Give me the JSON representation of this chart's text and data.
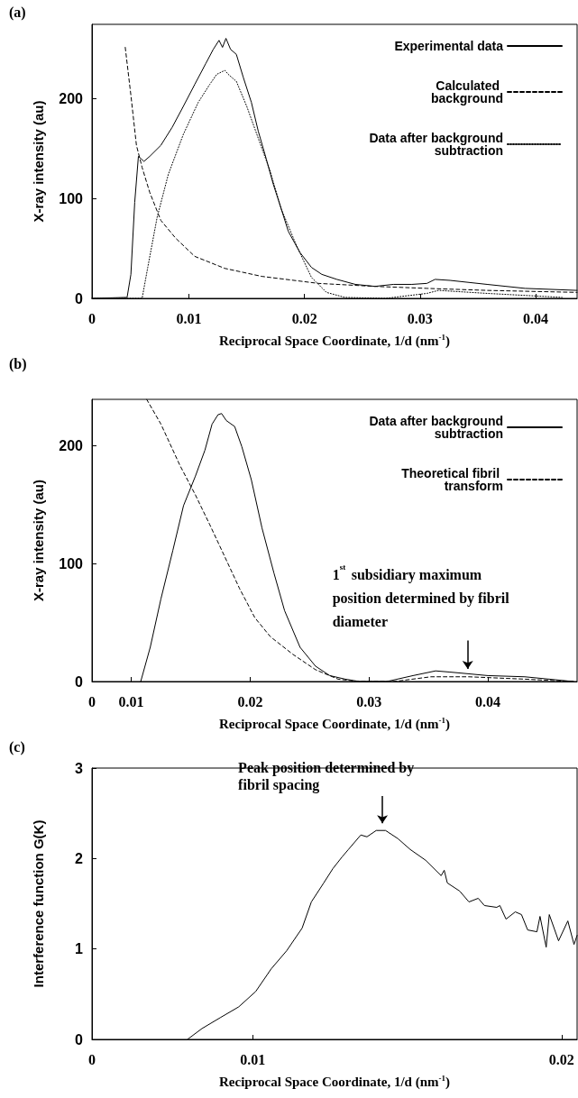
{
  "chart_data": [
    {
      "type": "line",
      "title": "(a)",
      "xlabel": "Reciprocal Space Coordinate, 1/d (nm$^{-1}$)",
      "ylabel": "X-ray intensity (au)",
      "xlim": [
        0.0016,
        0.0436
      ],
      "xticks": [
        {
          "value": 0.0016,
          "label": "0"
        },
        0.01,
        0.02,
        0.03,
        0.04
      ],
      "ylim": [
        0,
        274
      ],
      "yticks": [
        0,
        100,
        200
      ],
      "grid": false,
      "legend": "top right",
      "marker": "none",
      "series": [
        {
          "name": "Experimental data",
          "color": "#000000",
          "line_style": "solid",
          "x": [
            0.0016,
            0.00464,
            0.00497,
            0.0053,
            0.00562,
            0.0061,
            0.0066,
            0.00756,
            0.00854,
            0.00951,
            0.0105,
            0.01146,
            0.0121,
            0.0126,
            0.0129,
            0.0132,
            0.0136,
            0.0141,
            0.0147,
            0.0154,
            0.016,
            0.0167,
            0.0173,
            0.018,
            0.0186,
            0.0196,
            0.0206,
            0.0215,
            0.0228,
            0.0244,
            0.0261,
            0.0277,
            0.0293,
            0.0306,
            0.0313,
            0.0326,
            0.0358,
            0.0391,
            0.0436
          ],
          "values": [
            0,
            1,
            24,
            96,
            142,
            137,
            142,
            153,
            171,
            192,
            214,
            235,
            249,
            258,
            251,
            260,
            249,
            244,
            221,
            196,
            167,
            139,
            114,
            89,
            67,
            46,
            31,
            24,
            19,
            14,
            12,
            14,
            14,
            15,
            19,
            18,
            14,
            10,
            8
          ]
        },
        {
          "name": "Calculated background",
          "color": "#000000",
          "line_style": "dashed",
          "x": [
            0.00448,
            0.00497,
            0.00545,
            0.00594,
            0.0066,
            0.00756,
            0.00886,
            0.0105,
            0.0131,
            0.0163,
            0.0212,
            0.0261,
            0.0306,
            0.0358,
            0.0436
          ],
          "values": [
            251,
            203,
            153,
            131,
            106,
            78,
            60,
            42,
            30,
            22,
            15,
            12,
            10,
            8,
            6
          ]
        },
        {
          "name": "Data after background subtraction",
          "color": "#000000",
          "line_style": "dotted",
          "x": [
            0.0016,
            0.00594,
            0.00643,
            0.00724,
            0.00821,
            0.00951,
            0.0108,
            0.0118,
            0.0124,
            0.0131,
            0.0134,
            0.0141,
            0.015,
            0.016,
            0.017,
            0.018,
            0.0193,
            0.0206,
            0.0219,
            0.0235,
            0.027,
            0.0306,
            0.0316,
            0.0358,
            0.0423
          ],
          "values": [
            0,
            0,
            31,
            81,
            124,
            164,
            196,
            214,
            224,
            228,
            224,
            217,
            192,
            160,
            128,
            89,
            53,
            21,
            6,
            1,
            0,
            5,
            8,
            5,
            1
          ]
        }
      ]
    },
    {
      "type": "line",
      "title": "(b)",
      "xlabel": "Reciprocal Space Coordinate, 1/d (nm$^{-1}$)",
      "ylabel": "X-ray intensity (au)",
      "xlim": [
        0.0067,
        0.0475
      ],
      "xticks": [
        {
          "value": 0.0067,
          "label": "0"
        },
        0.01,
        0.02,
        0.03,
        0.04
      ],
      "ylim": [
        0,
        239
      ],
      "yticks": [
        0,
        100,
        200
      ],
      "grid": false,
      "legend": "top right",
      "marker": "none",
      "annotations": [
        {
          "text": "1$^{st}$ subsidiary maximum position determined by fibril diameter",
          "x": 0.0383,
          "y": 6
        }
      ],
      "series": [
        {
          "name": "Data after background subtraction",
          "color": "#000000",
          "line_style": "solid",
          "x": [
            0.0108,
            0.0116,
            0.0125,
            0.0135,
            0.0144,
            0.0154,
            0.0162,
            0.0168,
            0.0173,
            0.0176,
            0.018,
            0.0187,
            0.0193,
            0.0201,
            0.021,
            0.022,
            0.0229,
            0.0242,
            0.0255,
            0.0267,
            0.028,
            0.0292,
            0.0315,
            0.0337,
            0.0356,
            0.0368,
            0.04,
            0.0431,
            0.0472
          ],
          "values": [
            0,
            29,
            70,
            111,
            149,
            174,
            196,
            218,
            226,
            227,
            221,
            216,
            199,
            171,
            130,
            92,
            60,
            29,
            13,
            5,
            2,
            0,
            0,
            5,
            9,
            8,
            5,
            4,
            0
          ]
        },
        {
          "name": "Theoretical fibril transform",
          "color": "#000000",
          "line_style": "dashed",
          "x": [
            0.0113,
            0.0125,
            0.0141,
            0.0154,
            0.0166,
            0.0179,
            0.0191,
            0.0204,
            0.0217,
            0.0236,
            0.0255,
            0.0274,
            0.0292,
            0.0321,
            0.0352,
            0.0384,
            0.0431,
            0.0472
          ],
          "values": [
            239,
            218,
            183,
            158,
            133,
            105,
            79,
            54,
            38,
            23,
            10,
            2,
            0,
            0,
            4,
            4,
            2,
            0
          ]
        }
      ]
    },
    {
      "type": "line",
      "title": "(c)",
      "xlabel": "Reciprocal Space Coordinate, 1/d (nm$^{-1}$)",
      "ylabel": "Interference function G(K)",
      "xlim": [
        0.0048,
        0.0205
      ],
      "xticks": [
        {
          "value": 0.0048,
          "label": "0"
        },
        0.01,
        0.02
      ],
      "ylim": [
        0,
        3
      ],
      "yticks": [
        0,
        1,
        2,
        3
      ],
      "grid": false,
      "marker": "none",
      "annotations": [
        {
          "text": "Peak position determined by fibril spacing",
          "x": 0.0142,
          "y": 2.33
        }
      ],
      "series": [
        {
          "color": "#000000",
          "line_style": "solid",
          "x": [
            0.00789,
            0.00836,
            0.00895,
            0.00955,
            0.0101,
            0.0106,
            0.0111,
            0.0116,
            0.0119,
            0.0123,
            0.0126,
            0.0129,
            0.0131,
            0.0135,
            0.0137,
            0.014,
            0.0143,
            0.0147,
            0.0151,
            0.0156,
            0.0161,
            0.0162,
            0.0163,
            0.0167,
            0.017,
            0.0173,
            0.0175,
            0.0179,
            0.018,
            0.0182,
            0.0185,
            0.0187,
            0.0189,
            0.0192,
            0.0193,
            0.0195,
            0.0196,
            0.0199,
            0.0202,
            0.0204,
            0.0205
          ],
          "values": [
            0,
            0.12,
            0.24,
            0.36,
            0.53,
            0.78,
            0.98,
            1.23,
            1.52,
            1.73,
            1.89,
            2.02,
            2.1,
            2.26,
            2.24,
            2.31,
            2.31,
            2.22,
            2.1,
            1.98,
            1.81,
            1.87,
            1.73,
            1.64,
            1.52,
            1.56,
            1.48,
            1.46,
            1.48,
            1.33,
            1.41,
            1.38,
            1.21,
            1.19,
            1.36,
            1.02,
            1.38,
            1.09,
            1.31,
            1.05,
            1.15
          ]
        }
      ]
    }
  ]
}
